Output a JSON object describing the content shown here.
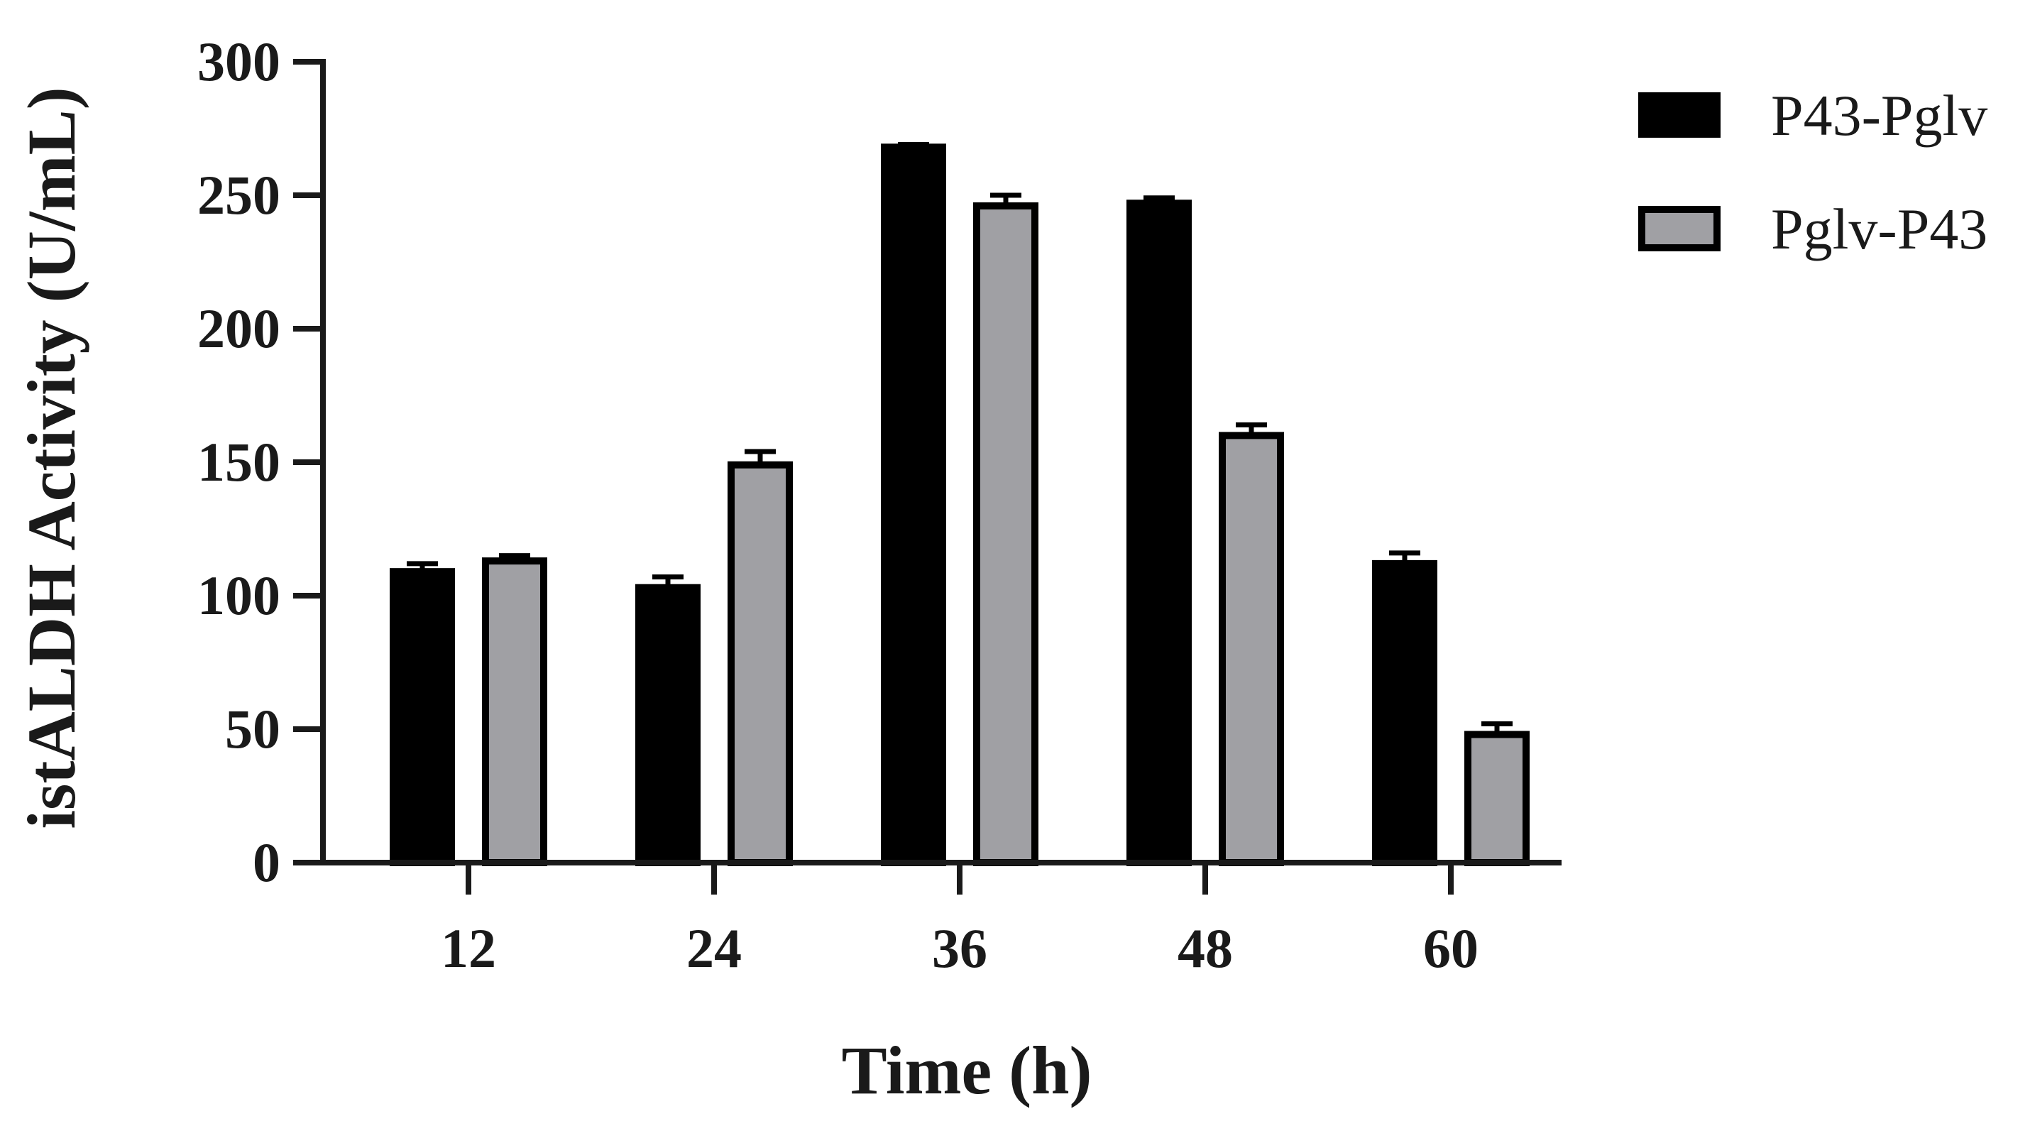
{
  "chart_data": {
    "type": "bar",
    "categories": [
      "12",
      "24",
      "36",
      "48",
      "60"
    ],
    "series": [
      {
        "name": "P43-Pglv",
        "color": "#000000",
        "values": [
          109,
          103,
          268,
          247,
          112
        ],
        "errors": [
          3,
          4,
          1,
          2,
          4
        ]
      },
      {
        "name": "Pglv-P43",
        "color": "#a0a0a4",
        "values": [
          113,
          149,
          246,
          160,
          48
        ],
        "errors": [
          2,
          5,
          4,
          4,
          4
        ]
      }
    ],
    "xlabel": "Time (h)",
    "ylabel": "istALDH Activity (U/mL)",
    "ylim": [
      0,
      300
    ],
    "yticks": [
      "0",
      "50",
      "100",
      "150",
      "200",
      "250",
      "300"
    ],
    "grid": false,
    "legend_position": "top-right"
  }
}
